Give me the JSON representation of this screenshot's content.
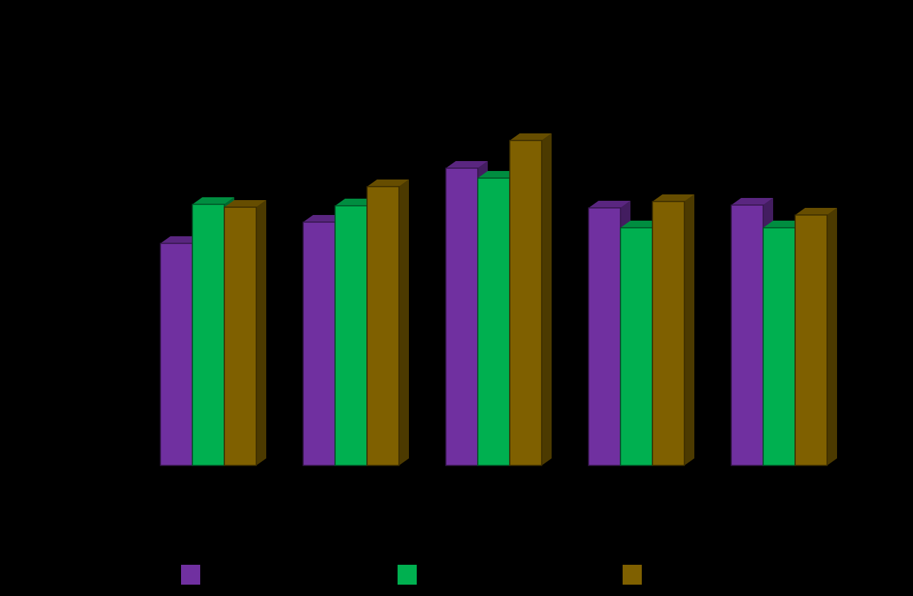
{
  "chart_data": {
    "type": "bar",
    "style": "3d-clustered",
    "title": "",
    "xlabel": "",
    "ylabel": "",
    "categories": [
      "",
      "",
      "",
      "",
      ""
    ],
    "ylim": [
      0,
      5
    ],
    "grid": false,
    "legend_placement": "bottom",
    "background": "#000000",
    "series": [
      {
        "color": "#7030a0",
        "values": [
          3.13,
          3.43,
          4.19,
          3.63,
          3.67
        ]
      },
      {
        "color": "#00b050",
        "values": [
          3.68,
          3.66,
          4.05,
          3.35,
          3.35
        ]
      },
      {
        "color": "#7f6000",
        "values": [
          3.64,
          3.93,
          4.58,
          3.72,
          3.53
        ]
      }
    ]
  }
}
